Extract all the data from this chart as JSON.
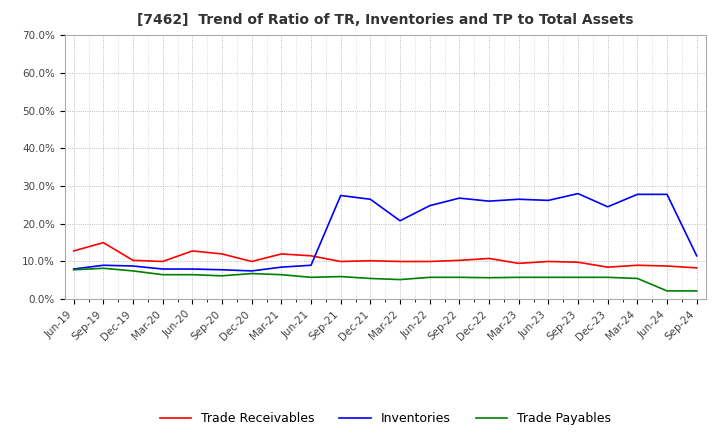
{
  "title": "[7462]  Trend of Ratio of TR, Inventories and TP to Total Assets",
  "x_labels": [
    "Jun-19",
    "Sep-19",
    "Dec-19",
    "Mar-20",
    "Jun-20",
    "Sep-20",
    "Dec-20",
    "Mar-21",
    "Jun-21",
    "Sep-21",
    "Dec-21",
    "Mar-22",
    "Jun-22",
    "Sep-22",
    "Dec-22",
    "Mar-23",
    "Jun-23",
    "Sep-23",
    "Dec-23",
    "Mar-24",
    "Jun-24",
    "Sep-24"
  ],
  "trade_receivables": [
    0.128,
    0.15,
    0.103,
    0.1,
    0.128,
    0.12,
    0.1,
    0.12,
    0.115,
    0.1,
    0.102,
    0.1,
    0.1,
    0.103,
    0.108,
    0.095,
    0.1,
    0.098,
    0.085,
    0.09,
    0.088,
    0.083
  ],
  "inventories": [
    0.08,
    0.09,
    0.088,
    0.08,
    0.08,
    0.078,
    0.075,
    0.085,
    0.09,
    0.275,
    0.265,
    0.208,
    0.248,
    0.268,
    0.26,
    0.265,
    0.262,
    0.28,
    0.245,
    0.278,
    0.278,
    0.115
  ],
  "trade_payables": [
    0.078,
    0.082,
    0.075,
    0.065,
    0.065,
    0.062,
    0.068,
    0.065,
    0.058,
    0.06,
    0.055,
    0.052,
    0.058,
    0.058,
    0.057,
    0.058,
    0.058,
    0.058,
    0.058,
    0.055,
    0.022,
    0.022
  ],
  "ylim": [
    0.0,
    0.7
  ],
  "yticks": [
    0.0,
    0.1,
    0.2,
    0.3,
    0.4,
    0.5,
    0.6,
    0.7
  ],
  "color_tr": "#FF0000",
  "color_inv": "#0000FF",
  "color_tp": "#008000",
  "legend_labels": [
    "Trade Receivables",
    "Inventories",
    "Trade Payables"
  ],
  "background_color": "#FFFFFF",
  "grid_color": "#AAAAAA"
}
